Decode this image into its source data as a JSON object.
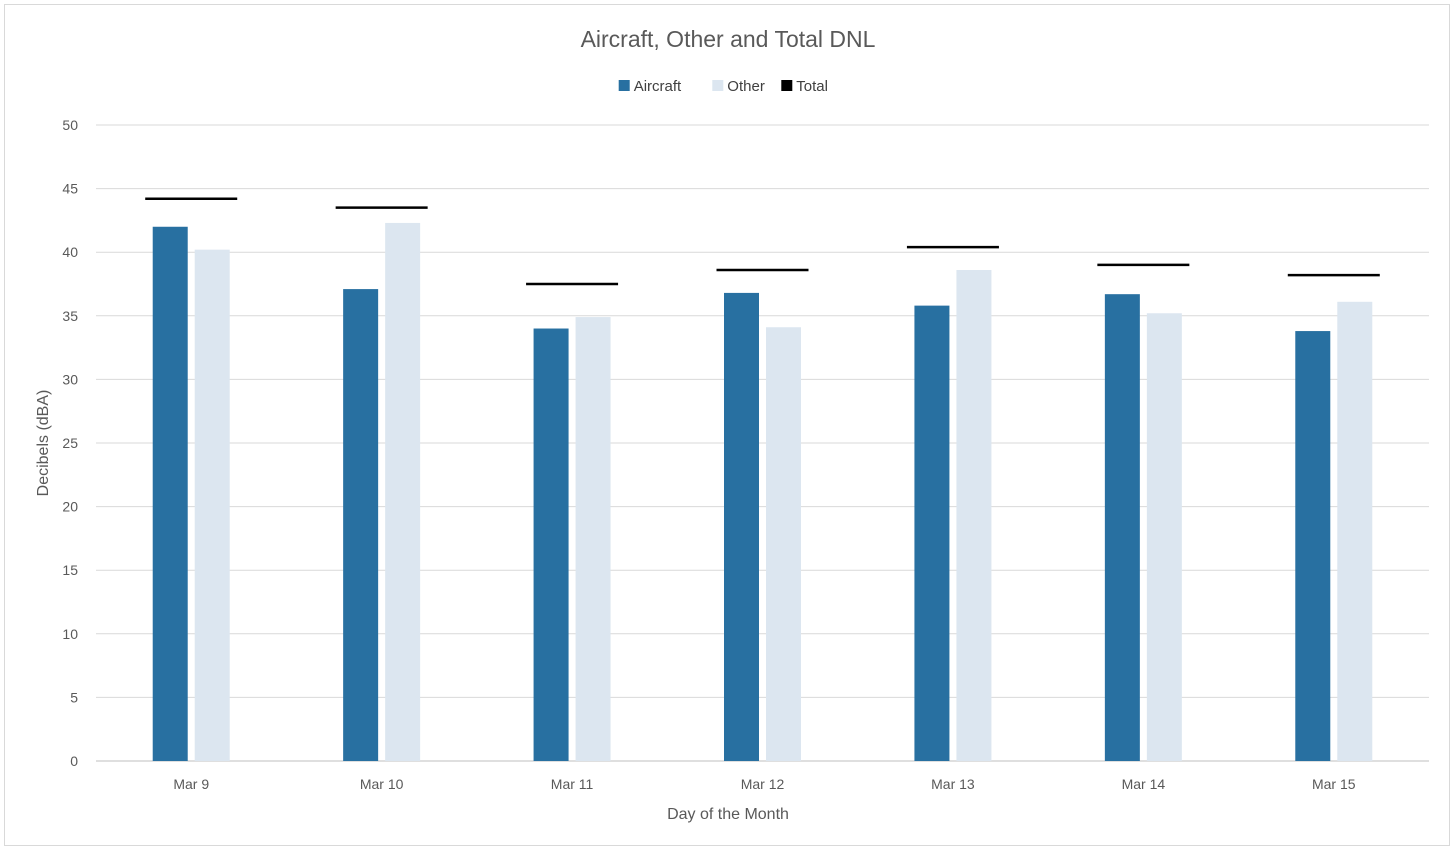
{
  "chart_data": {
    "type": "bar",
    "title": "Aircraft, Other and Total DNL",
    "xlabel": "Day of the Month",
    "ylabel": "Decibels (dBA)",
    "ylim": [
      0,
      50
    ],
    "ytick_step": 5,
    "yticks": [
      "0",
      "5",
      "10",
      "15",
      "20",
      "25",
      "30",
      "35",
      "40",
      "45",
      "50"
    ],
    "grid": true,
    "legend": "top",
    "categories": [
      "Mar 9",
      "Mar 10",
      "Mar 11",
      "Mar 12",
      "Mar 13",
      "Mar 14",
      "Mar 15"
    ],
    "series": [
      {
        "name": "Aircraft",
        "type": "bar",
        "color": "#2870a1",
        "values": [
          42.0,
          37.1,
          34.0,
          36.8,
          35.8,
          36.7,
          33.8
        ]
      },
      {
        "name": "Other",
        "type": "bar",
        "color": "#dce6f0",
        "values": [
          40.2,
          42.3,
          34.9,
          34.1,
          38.6,
          35.2,
          36.1
        ]
      },
      {
        "name": "Total",
        "type": "marker-line",
        "color": "#000000",
        "values": [
          44.2,
          43.5,
          37.5,
          38.6,
          40.4,
          39.0,
          38.2
        ]
      }
    ]
  }
}
